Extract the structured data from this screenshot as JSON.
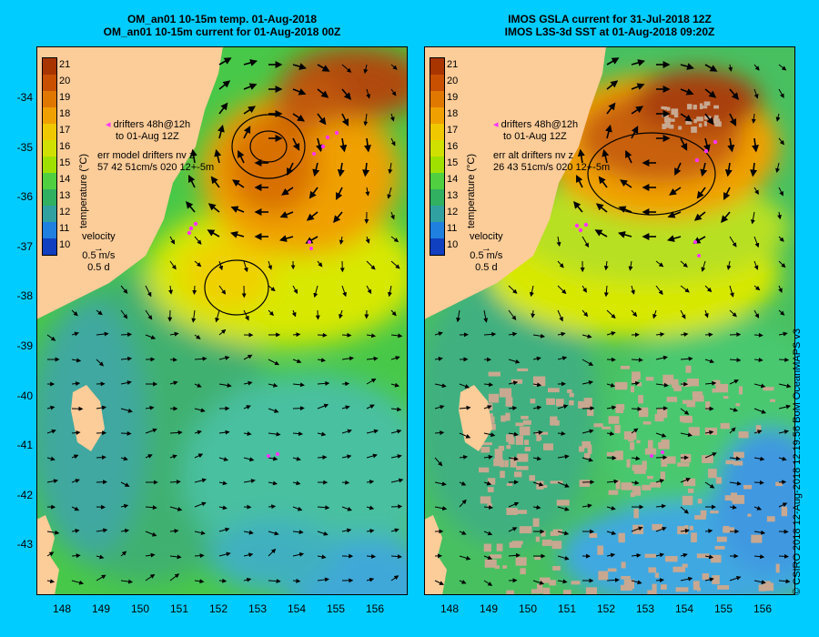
{
  "left_panel": {
    "title_line1": "OM_an01 10-15m temp. 01-Aug-2018",
    "title_line2": "OM_an01 10-15m current for 01-Aug-2018 00Z",
    "drifters_line1": "drifters 48h@12h",
    "drifters_line2": "to 01-Aug 12Z",
    "err_line1": "err model drifters nv z",
    "err_line2": "57 42 51cm/s 020 12+-5m"
  },
  "right_panel": {
    "title_line1": "IMOS GSLA current for 31-Jul-2018 12Z",
    "title_line2": "IMOS L3S-3d SST at 01-Aug-2018 09:20Z",
    "drifters_line1": "drifters 48h@12h",
    "drifters_line2": "to 01-Aug 12Z",
    "err_line1": "err alt drifters nv z",
    "err_line2": "26 43 51cm/s 020 12+-5m"
  },
  "colorbar": {
    "label": "temperature (°C)",
    "ticks": [
      "21",
      "20",
      "19",
      "18",
      "17",
      "16",
      "15",
      "14",
      "13",
      "12",
      "11",
      "10"
    ],
    "colors": [
      "#a83400",
      "#c85000",
      "#e07800",
      "#f0a000",
      "#f0c800",
      "#d0e000",
      "#a0e000",
      "#50d040",
      "#30b060",
      "#30a0a0",
      "#2080e0",
      "#1040c0"
    ]
  },
  "velocity_legend": {
    "label": "velocity",
    "speed": "0.5 m/s",
    "duration": "0.5 d"
  },
  "axes": {
    "lat_labels": [
      "-34",
      "-35",
      "-36",
      "-37",
      "-38",
      "-39",
      "-40",
      "-41",
      "-42",
      "-43"
    ],
    "lon_labels": [
      "148",
      "149",
      "150",
      "151",
      "152",
      "153",
      "154",
      "155",
      "156"
    ]
  },
  "side_credit": "© CSIRO 2018   12-Aug-2018 12:19:56 BoM OceanMAPS v3",
  "map_colors": {
    "land": "#fccc99",
    "cloud": "#c8a890",
    "warm_core": "#c05810",
    "warm": "#f0a000",
    "yellow": "#e8e800",
    "green": "#48c848",
    "teal": "#40b888",
    "cool": "#4aa0e0"
  }
}
